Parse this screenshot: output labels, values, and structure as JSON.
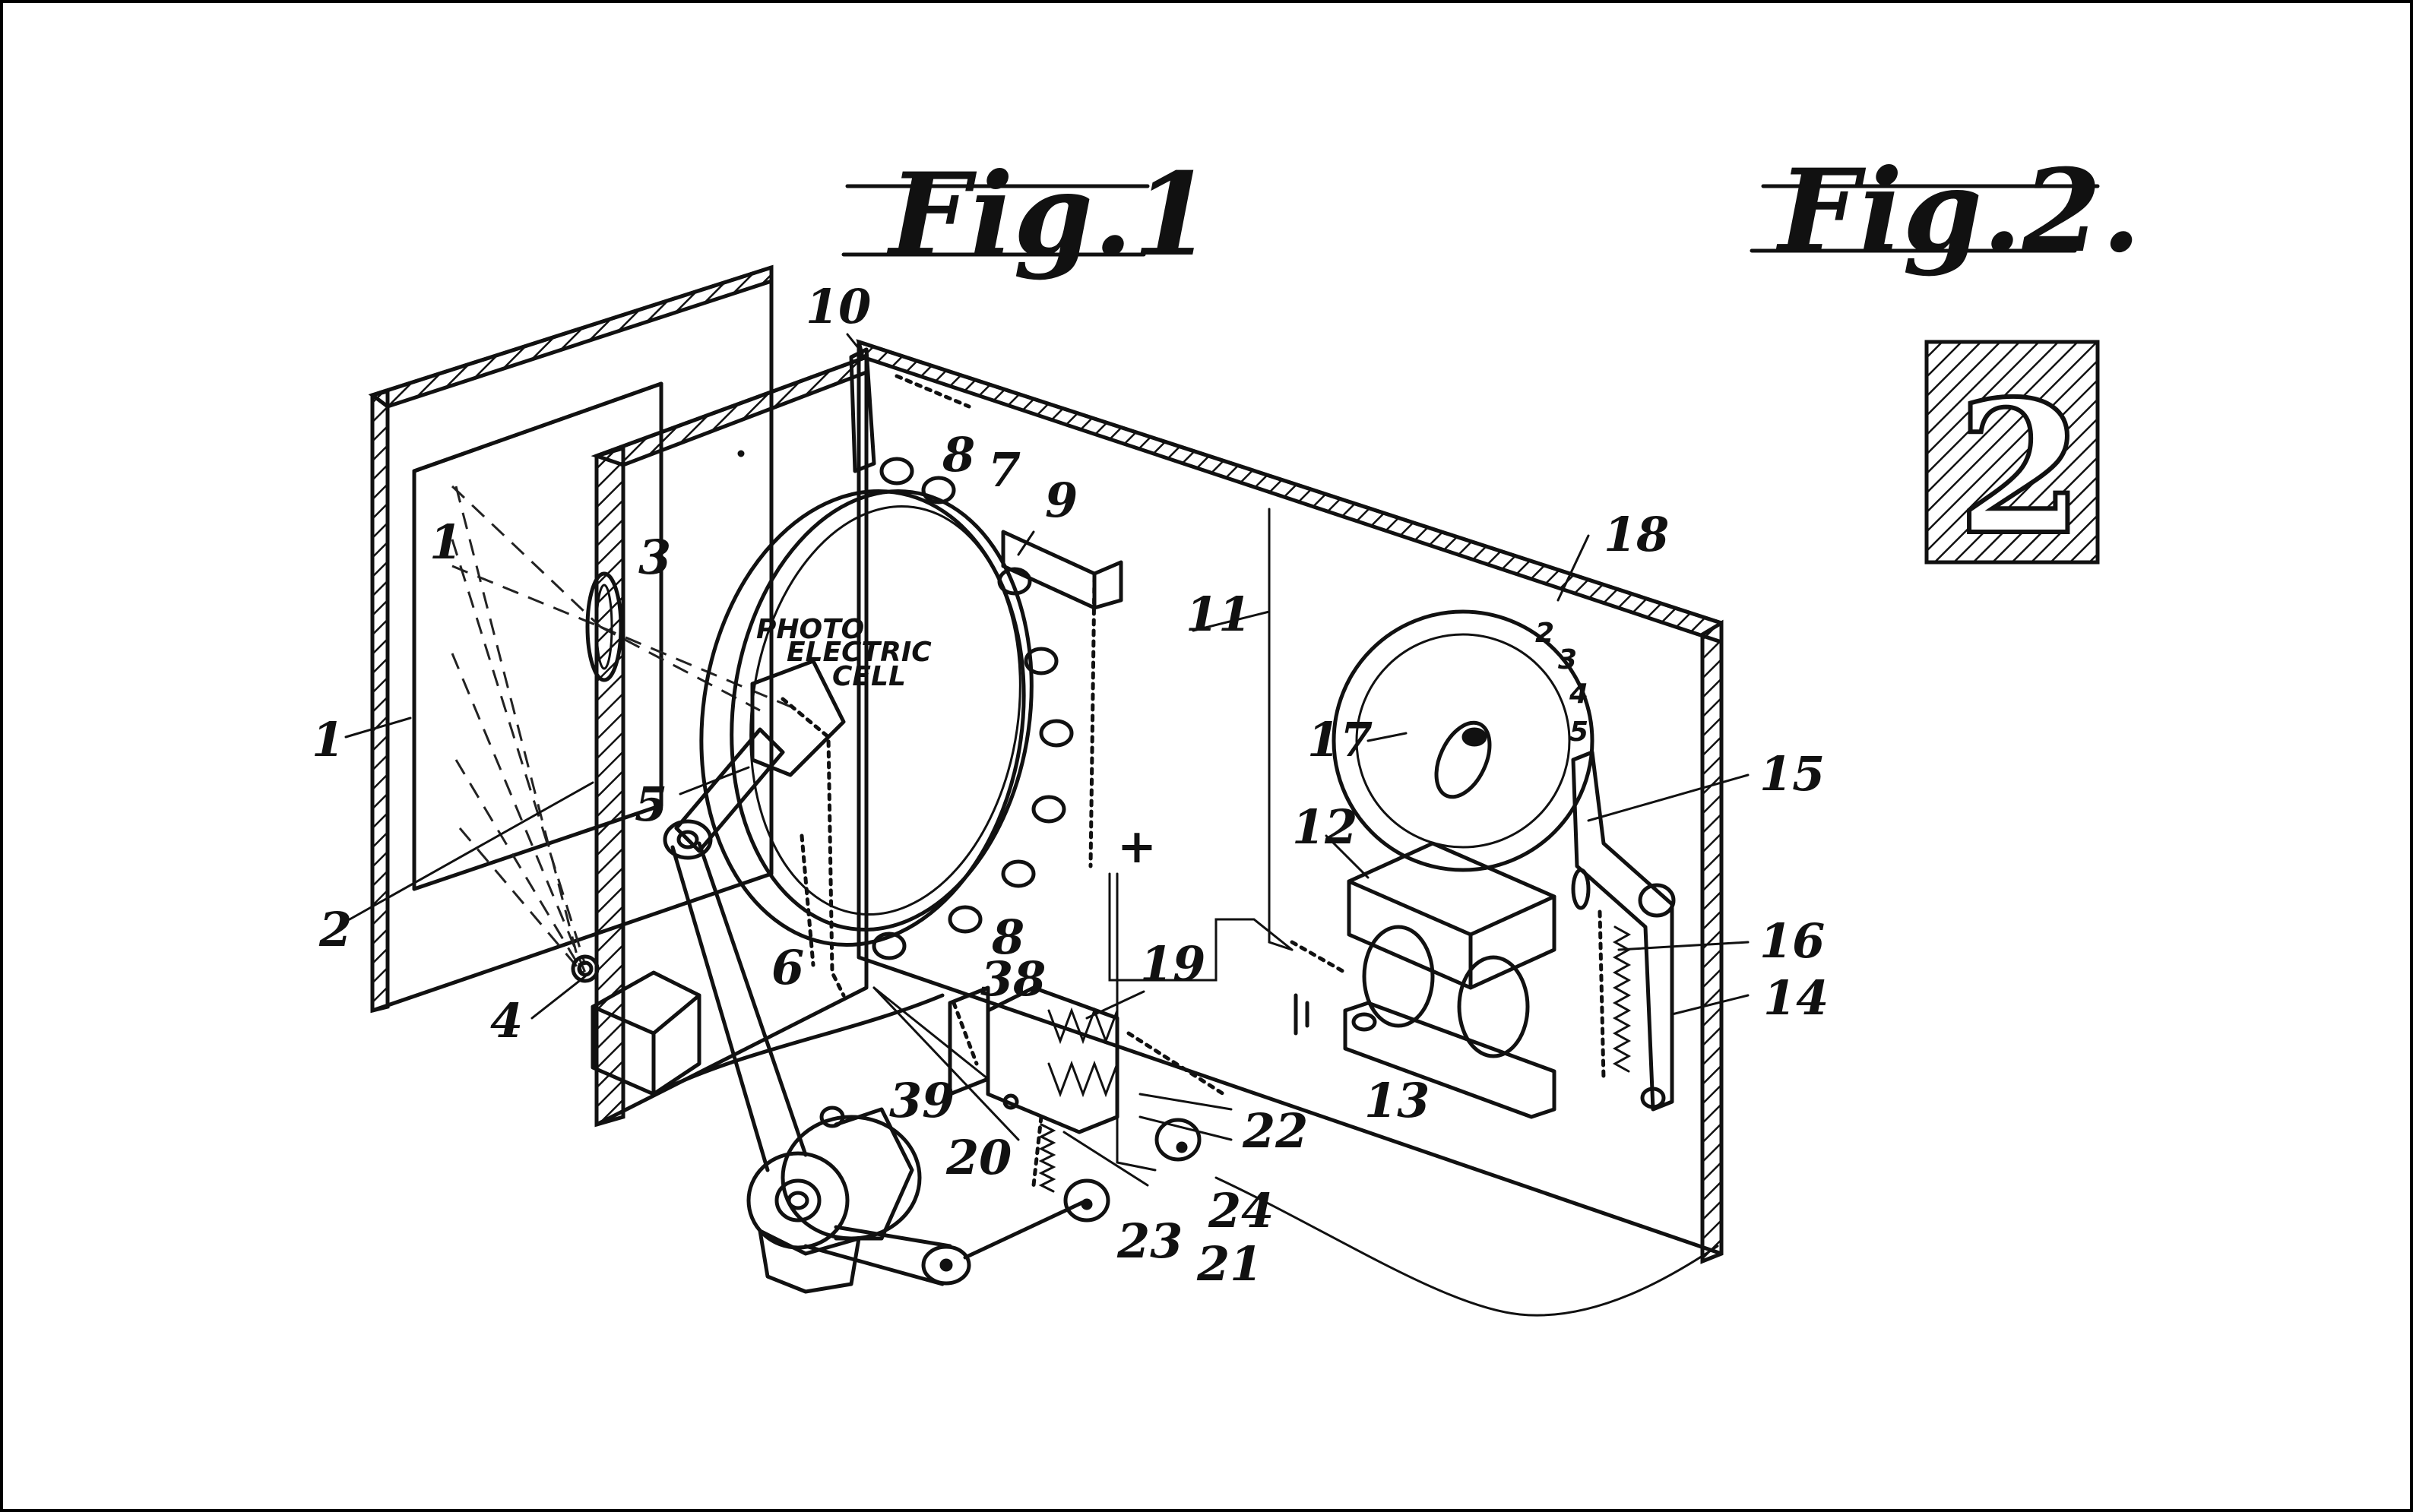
{
  "figures": {
    "fig1_title": "Fig.1",
    "fig2_title": "Fig.2."
  },
  "cell_label": {
    "line1": "PHOTO",
    "line2": "ELECTRIC",
    "line3": "CELL"
  },
  "symbols": {
    "plus": "+",
    "fig2_char": "2"
  },
  "reference_numerals": [
    "1",
    "1",
    "2",
    "3",
    "4",
    "5",
    "6",
    "7",
    "8",
    "8",
    "9",
    "10",
    "11",
    "12",
    "13",
    "14",
    "15",
    "16",
    "17",
    "18",
    "19",
    "20",
    "21",
    "22",
    "23",
    "24",
    "38",
    "39"
  ],
  "dial_marks": [
    "2",
    "3",
    "4",
    "5"
  ]
}
